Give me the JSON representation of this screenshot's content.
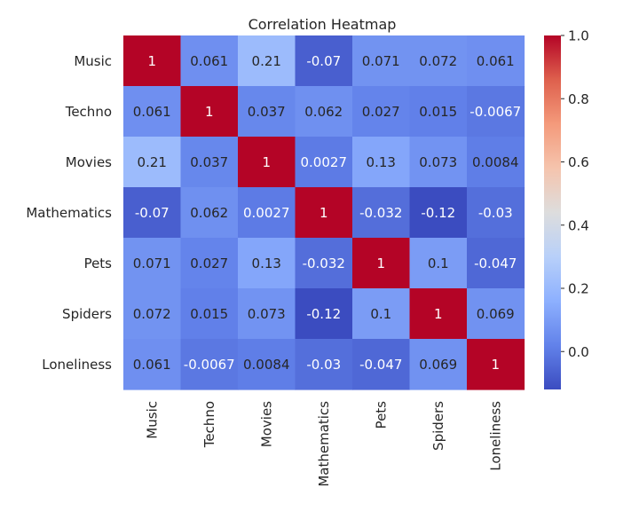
{
  "chart_data": {
    "type": "heatmap",
    "title": "Correlation Heatmap",
    "xlabel": "",
    "ylabel": "",
    "x_labels": [
      "Music",
      "Techno",
      "Movies",
      "Mathematics",
      "Pets",
      "Spiders",
      "Loneliness"
    ],
    "y_labels": [
      "Music",
      "Techno",
      "Movies",
      "Mathematics",
      "Pets",
      "Spiders",
      "Loneliness"
    ],
    "values": [
      [
        1,
        0.061,
        0.21,
        -0.07,
        0.071,
        0.072,
        0.061
      ],
      [
        0.061,
        1,
        0.037,
        0.062,
        0.027,
        0.015,
        -0.0067
      ],
      [
        0.21,
        0.037,
        1,
        0.0027,
        0.13,
        0.073,
        0.0084
      ],
      [
        -0.07,
        0.062,
        0.0027,
        1,
        -0.032,
        -0.12,
        -0.03
      ],
      [
        0.071,
        0.027,
        0.13,
        -0.032,
        1,
        0.1,
        -0.047
      ],
      [
        0.072,
        0.015,
        0.073,
        -0.12,
        0.1,
        1,
        0.069
      ],
      [
        0.061,
        -0.0067,
        0.0084,
        -0.03,
        -0.047,
        0.069,
        1
      ]
    ],
    "value_labels": [
      [
        "1",
        "0.061",
        "0.21",
        "-0.07",
        "0.071",
        "0.072",
        "0.061"
      ],
      [
        "0.061",
        "1",
        "0.037",
        "0.062",
        "0.027",
        "0.015",
        "-0.0067"
      ],
      [
        "0.21",
        "0.037",
        "1",
        "0.0027",
        "0.13",
        "0.073",
        "0.0084"
      ],
      [
        "-0.07",
        "0.062",
        "0.0027",
        "1",
        "-0.032",
        "-0.12",
        "-0.03"
      ],
      [
        "0.071",
        "0.027",
        "0.13",
        "-0.032",
        "1",
        "0.1",
        "-0.047"
      ],
      [
        "0.072",
        "0.015",
        "0.073",
        "-0.12",
        "0.1",
        "1",
        "0.069"
      ],
      [
        "0.061",
        "-0.0067",
        "0.0084",
        "-0.03",
        "-0.047",
        "0.069",
        "1"
      ]
    ],
    "colormap": "coolwarm",
    "color_range": [
      -0.12,
      1.0
    ],
    "colorbar": {
      "ticks": [
        0.0,
        0.2,
        0.4,
        0.6,
        0.8,
        1.0
      ],
      "tick_labels": [
        "0.0",
        "0.2",
        "0.4",
        "0.6",
        "0.8",
        "1.0"
      ]
    },
    "grid": false,
    "legend": "none"
  }
}
